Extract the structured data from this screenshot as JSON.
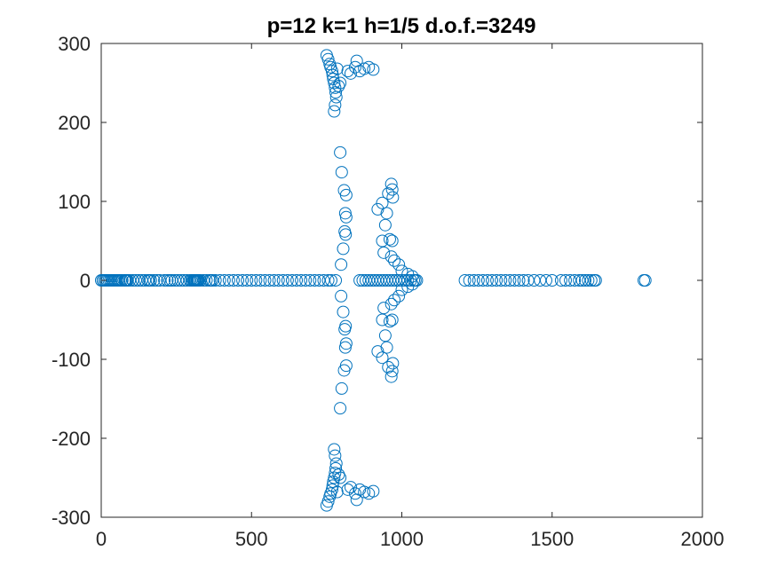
{
  "chart_data": {
    "type": "scatter",
    "title": "p=12 k=1 h=1/5 d.o.f.=3249",
    "xlabel": "",
    "ylabel": "",
    "xlim": [
      0,
      2000
    ],
    "ylim": [
      -300,
      300
    ],
    "x_ticks": [
      0,
      500,
      1000,
      1500,
      2000
    ],
    "x_tick_labels": [
      "0",
      "500",
      "1000",
      "1500",
      "2000"
    ],
    "y_ticks": [
      -300,
      -200,
      -100,
      0,
      100,
      200,
      300
    ],
    "y_tick_labels": [
      "-300",
      "-200",
      "-100",
      "0",
      "100",
      "200",
      "300"
    ],
    "grid": false,
    "legend": "none",
    "marker": "open-circle",
    "colors": {
      "marker": "#0072BD",
      "axes": "#262626",
      "background": "#ffffff"
    },
    "real_axis_points": [
      0,
      5,
      10,
      15,
      20,
      25,
      30,
      35,
      40,
      45,
      50,
      55,
      60,
      65,
      70,
      78,
      80,
      82,
      85,
      88,
      95,
      105,
      115,
      125,
      135,
      145,
      155,
      160,
      165,
      175,
      185,
      195,
      210,
      220,
      228,
      235,
      245,
      255,
      265,
      275,
      285,
      295,
      300,
      305,
      308,
      310,
      312,
      315,
      318,
      320,
      322,
      325,
      330,
      340,
      350,
      360,
      365,
      370,
      380,
      395,
      410,
      425,
      440,
      455,
      470,
      485,
      500,
      515,
      530,
      545,
      560,
      575,
      590,
      605,
      620,
      635,
      650,
      665,
      680,
      695,
      710,
      725,
      740,
      755,
      765,
      780,
      860,
      870,
      880,
      890,
      900,
      910,
      920,
      930,
      940,
      950,
      960,
      970,
      980,
      990,
      1000,
      1010,
      1020,
      1030,
      1040,
      1045,
      1050,
      1210,
      1225,
      1240,
      1255,
      1270,
      1285,
      1300,
      1315,
      1330,
      1345,
      1360,
      1375,
      1390,
      1405,
      1420,
      1440,
      1460,
      1480,
      1500,
      1530,
      1545,
      1560,
      1575,
      1590,
      1600,
      1610,
      1620,
      1630,
      1640,
      1645,
      1805,
      1810
    ],
    "complex_points": [
      {
        "x": 750,
        "y": 285
      },
      {
        "x": 755,
        "y": 280
      },
      {
        "x": 760,
        "y": 274
      },
      {
        "x": 763,
        "y": 270
      },
      {
        "x": 768,
        "y": 265
      },
      {
        "x": 770,
        "y": 260
      },
      {
        "x": 772,
        "y": 255
      },
      {
        "x": 775,
        "y": 250
      },
      {
        "x": 778,
        "y": 244
      },
      {
        "x": 780,
        "y": 238
      },
      {
        "x": 782,
        "y": 232
      },
      {
        "x": 778,
        "y": 222
      },
      {
        "x": 775,
        "y": 214
      },
      {
        "x": 790,
        "y": 246
      },
      {
        "x": 795,
        "y": 250
      },
      {
        "x": 785,
        "y": 268
      },
      {
        "x": 830,
        "y": 262
      },
      {
        "x": 845,
        "y": 270
      },
      {
        "x": 850,
        "y": 278
      },
      {
        "x": 860,
        "y": 265
      },
      {
        "x": 875,
        "y": 268
      },
      {
        "x": 890,
        "y": 270
      },
      {
        "x": 905,
        "y": 267
      },
      {
        "x": 820,
        "y": 265
      },
      {
        "x": 795,
        "y": 162
      },
      {
        "x": 800,
        "y": 137
      },
      {
        "x": 808,
        "y": 114
      },
      {
        "x": 815,
        "y": 108
      },
      {
        "x": 812,
        "y": 85
      },
      {
        "x": 815,
        "y": 80
      },
      {
        "x": 810,
        "y": 62
      },
      {
        "x": 813,
        "y": 58
      },
      {
        "x": 805,
        "y": 40
      },
      {
        "x": 798,
        "y": 20
      },
      {
        "x": 920,
        "y": 90
      },
      {
        "x": 935,
        "y": 98
      },
      {
        "x": 950,
        "y": 85
      },
      {
        "x": 955,
        "y": 110
      },
      {
        "x": 965,
        "y": 122
      },
      {
        "x": 968,
        "y": 115
      },
      {
        "x": 970,
        "y": 105
      },
      {
        "x": 945,
        "y": 70
      },
      {
        "x": 935,
        "y": 50
      },
      {
        "x": 960,
        "y": 52
      },
      {
        "x": 968,
        "y": 50
      },
      {
        "x": 940,
        "y": 35
      },
      {
        "x": 965,
        "y": 30
      },
      {
        "x": 975,
        "y": 25
      },
      {
        "x": 990,
        "y": 20
      },
      {
        "x": 1000,
        "y": 12
      },
      {
        "x": 1020,
        "y": 8
      },
      {
        "x": 1035,
        "y": 5
      }
    ],
    "symmetry": "complex points mirrored about y=0"
  }
}
